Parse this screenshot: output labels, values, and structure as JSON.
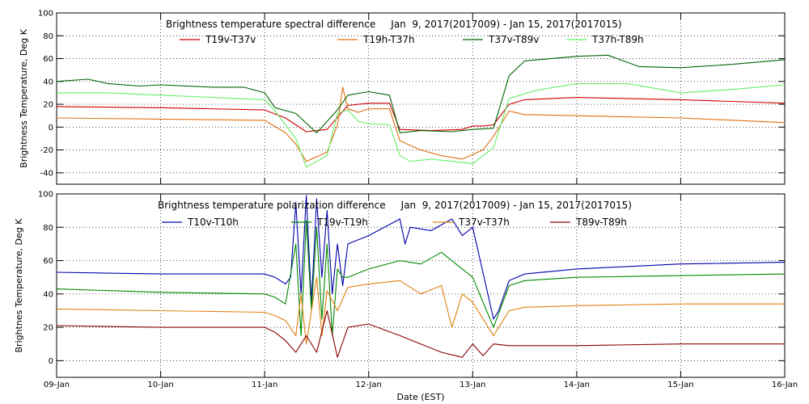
{
  "figure": {
    "xlabel": "Date (EST)"
  },
  "chart_data": [
    {
      "type": "line",
      "title": "Brightness temperature spectral difference     Jan  9, 2017(2017009) - Jan 15, 2017(2017015)",
      "ylabel": "Brightness Temperature, Deg K",
      "xlabel": "Date (EST)",
      "ylim": [
        -50,
        100
      ],
      "yticks": [
        "100",
        "80",
        "60",
        "40",
        "20",
        "0",
        "-20",
        "-40"
      ],
      "ytick_values": [
        100,
        80,
        60,
        40,
        20,
        0,
        -20,
        -40
      ],
      "xlim": [
        0,
        7
      ],
      "xticks": [
        "09-Jan",
        "10-Jan",
        "11-Jan",
        "12-Jan",
        "13-Jan",
        "14-Jan",
        "15-Jan",
        "16-Jan"
      ],
      "grid": true,
      "legend": "top",
      "series": [
        {
          "name": "T19v-T37v",
          "color": "#cc0000",
          "x": [
            0,
            1,
            2,
            2.2,
            2.4,
            2.6,
            2.8,
            3.0,
            3.2,
            3.3,
            3.6,
            3.9,
            4.0,
            4.1,
            4.2,
            4.35,
            4.5,
            5.0,
            6.0,
            7
          ],
          "y": [
            18,
            17,
            15,
            8,
            -4,
            -2,
            19,
            21,
            21,
            -2,
            -3,
            -2,
            1,
            1,
            2,
            20,
            24,
            26,
            24,
            21
          ]
        },
        {
          "name": "T19h-T37h",
          "color": "#e07010",
          "x": [
            0,
            1,
            2,
            2.2,
            2.3,
            2.4,
            2.6,
            2.7,
            2.75,
            2.8,
            2.9,
            3.0,
            3.2,
            3.3,
            3.5,
            3.7,
            3.9,
            4.1,
            4.2,
            4.35,
            4.5,
            5.0,
            6.0,
            7
          ],
          "y": [
            8,
            7,
            6,
            -5,
            -15,
            -30,
            -22,
            2,
            35,
            16,
            13,
            16,
            16,
            -12,
            -20,
            -25,
            -28,
            -20,
            -8,
            14,
            11,
            10,
            8,
            4
          ]
        },
        {
          "name": "T37v-T89v",
          "color": "#006400",
          "x": [
            0,
            0.3,
            0.5,
            0.8,
            1.0,
            1.5,
            1.8,
            2.0,
            2.1,
            2.3,
            2.5,
            2.7,
            2.8,
            3.0,
            3.2,
            3.3,
            3.5,
            3.8,
            4.0,
            4.2,
            4.35,
            4.5,
            5.0,
            5.3,
            5.6,
            6.0,
            6.5,
            7
          ],
          "y": [
            40,
            42,
            38,
            36,
            37,
            35,
            35,
            30,
            17,
            12,
            -5,
            15,
            28,
            31,
            28,
            -5,
            -3,
            -4,
            -2,
            -1,
            45,
            58,
            62,
            63,
            53,
            52,
            55,
            59
          ]
        },
        {
          "name": "T37h-T89h",
          "color": "#66ee66",
          "x": [
            0,
            0.5,
            1.0,
            1.5,
            2.0,
            2.1,
            2.3,
            2.4,
            2.6,
            2.7,
            2.8,
            2.9,
            3.0,
            3.2,
            3.3,
            3.4,
            3.6,
            3.8,
            4.0,
            4.2,
            4.35,
            4.6,
            5.0,
            5.5,
            6.0,
            6.5,
            7
          ],
          "y": [
            30,
            30,
            28,
            26,
            24,
            14,
            -10,
            -35,
            -25,
            12,
            15,
            5,
            3,
            2,
            -25,
            -30,
            -28,
            -30,
            -32,
            -18,
            25,
            32,
            38,
            38,
            30,
            33,
            37
          ]
        }
      ]
    },
    {
      "type": "line",
      "title": "Brightness temperature polarization difference     Jan  9, 2017(2017009) - Jan 15, 2017(2017015)",
      "ylabel": "Brightnes Temperature, Deg K",
      "xlabel": "Date (EST)",
      "ylim": [
        -10,
        100
      ],
      "yticks": [
        "100",
        "80",
        "60",
        "40",
        "20",
        "0"
      ],
      "ytick_values": [
        100,
        80,
        60,
        40,
        20,
        0
      ],
      "xlim": [
        0,
        7
      ],
      "xticks": [
        "09-Jan",
        "10-Jan",
        "11-Jan",
        "12-Jan",
        "13-Jan",
        "14-Jan",
        "15-Jan",
        "16-Jan"
      ],
      "grid": true,
      "legend": "top",
      "series": [
        {
          "name": "T10v-T10h",
          "color": "#0000aa",
          "x": [
            0,
            1,
            2,
            2.1,
            2.2,
            2.25,
            2.3,
            2.35,
            2.4,
            2.45,
            2.5,
            2.55,
            2.6,
            2.65,
            2.7,
            2.75,
            2.8,
            3.0,
            3.3,
            3.35,
            3.4,
            3.6,
            3.8,
            3.9,
            4.0,
            4.2,
            4.25,
            4.35,
            4.5,
            5.0,
            6.0,
            7
          ],
          "y": [
            53,
            52,
            52,
            50,
            46,
            50,
            95,
            40,
            99,
            35,
            97,
            50,
            90,
            40,
            70,
            45,
            70,
            75,
            85,
            70,
            80,
            78,
            85,
            75,
            80,
            25,
            30,
            48,
            52,
            55,
            58,
            59
          ]
        },
        {
          "name": "T19v-T19h",
          "color": "#008800",
          "x": [
            0,
            1,
            2,
            2.1,
            2.2,
            2.3,
            2.35,
            2.4,
            2.45,
            2.5,
            2.55,
            2.6,
            2.65,
            2.7,
            2.75,
            2.8,
            3.0,
            3.3,
            3.5,
            3.7,
            3.9,
            4.0,
            4.2,
            4.35,
            4.5,
            5.0,
            6.0,
            7
          ],
          "y": [
            43,
            41,
            40,
            38,
            34,
            70,
            15,
            84,
            30,
            80,
            25,
            70,
            15,
            55,
            50,
            50,
            55,
            60,
            58,
            65,
            55,
            50,
            20,
            45,
            48,
            50,
            51,
            52
          ]
        },
        {
          "name": "T37v-T37h",
          "color": "#e08010",
          "x": [
            0,
            1,
            2,
            2.1,
            2.2,
            2.3,
            2.35,
            2.4,
            2.5,
            2.55,
            2.6,
            2.7,
            2.8,
            3.0,
            3.3,
            3.5,
            3.7,
            3.8,
            3.9,
            4.0,
            4.2,
            4.35,
            4.5,
            5.0,
            6.0,
            7
          ],
          "y": [
            31,
            30,
            29,
            27,
            24,
            15,
            40,
            10,
            50,
            15,
            42,
            30,
            44,
            46,
            48,
            40,
            45,
            20,
            40,
            35,
            15,
            30,
            32,
            33,
            34,
            34
          ]
        },
        {
          "name": "T89v-T89h",
          "color": "#880000",
          "x": [
            0,
            1,
            2,
            2.1,
            2.2,
            2.3,
            2.4,
            2.5,
            2.6,
            2.7,
            2.8,
            3.0,
            3.3,
            3.5,
            3.7,
            3.9,
            4.0,
            4.1,
            4.2,
            4.35,
            4.5,
            5.0,
            6.0,
            7
          ],
          "y": [
            21,
            20,
            20,
            17,
            12,
            5,
            15,
            5,
            30,
            2,
            20,
            22,
            15,
            10,
            5,
            2,
            10,
            3,
            10,
            9,
            9,
            9,
            10,
            10
          ]
        }
      ]
    }
  ]
}
